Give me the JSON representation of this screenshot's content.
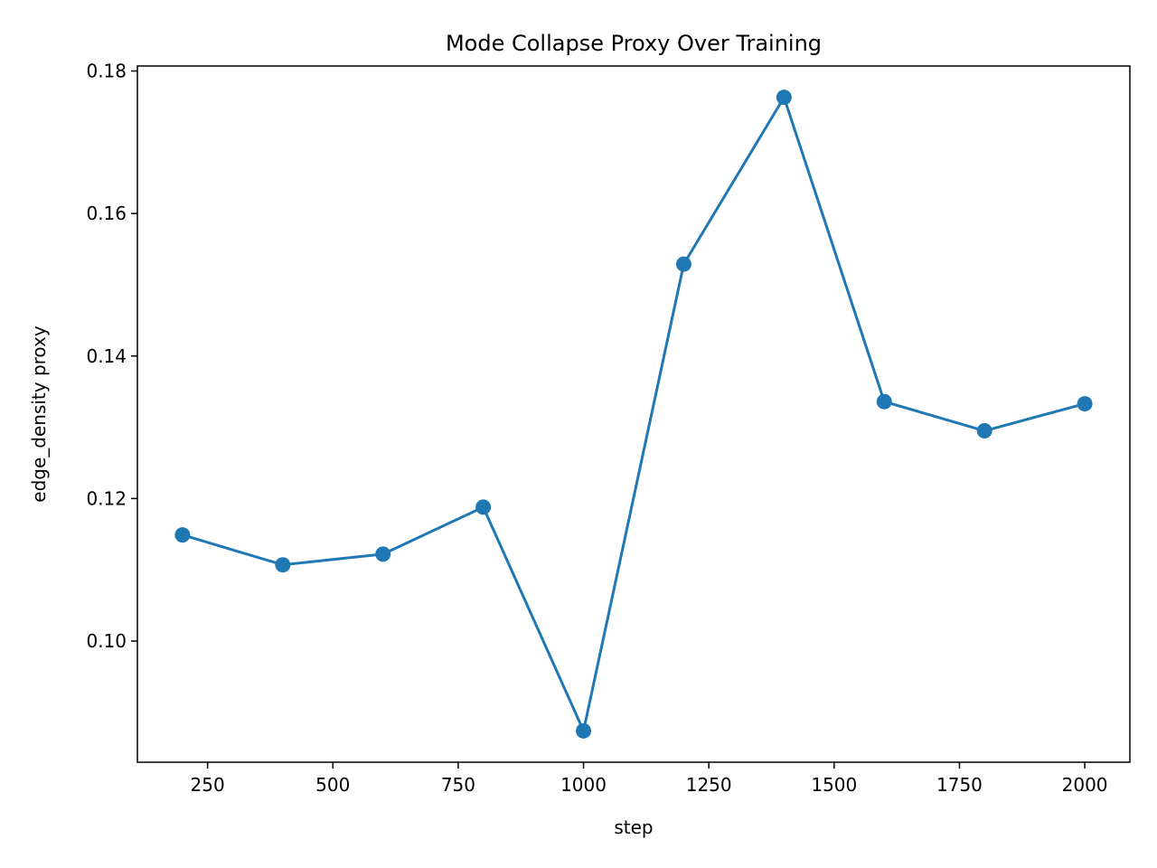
{
  "chart_data": {
    "type": "line",
    "title": "Mode Collapse Proxy Over Training",
    "xlabel": "step",
    "ylabel": "edge_density proxy",
    "x": [
      200,
      400,
      600,
      800,
      1000,
      1200,
      1400,
      1600,
      1800,
      2000
    ],
    "series": [
      {
        "values": [
          0.1149,
          0.1107,
          0.1122,
          0.1188,
          0.0874,
          0.1529,
          0.1763,
          0.1336,
          0.1295,
          0.1333
        ],
        "color": "#1f77b4",
        "marker": "circle"
      }
    ],
    "xlim": [
      110,
      2090
    ],
    "ylim": [
      0.083,
      0.1807
    ],
    "xticks": [
      250,
      500,
      750,
      1000,
      1250,
      1500,
      1750,
      2000
    ],
    "xtick_labels": [
      "250",
      "500",
      "750",
      "1000",
      "1250",
      "1500",
      "1750",
      "2000"
    ],
    "yticks": [
      0.1,
      0.12,
      0.14,
      0.16,
      0.18
    ],
    "ytick_labels": [
      "0.10",
      "0.12",
      "0.14",
      "0.16",
      "0.18"
    ],
    "grid": false,
    "legend": false
  }
}
